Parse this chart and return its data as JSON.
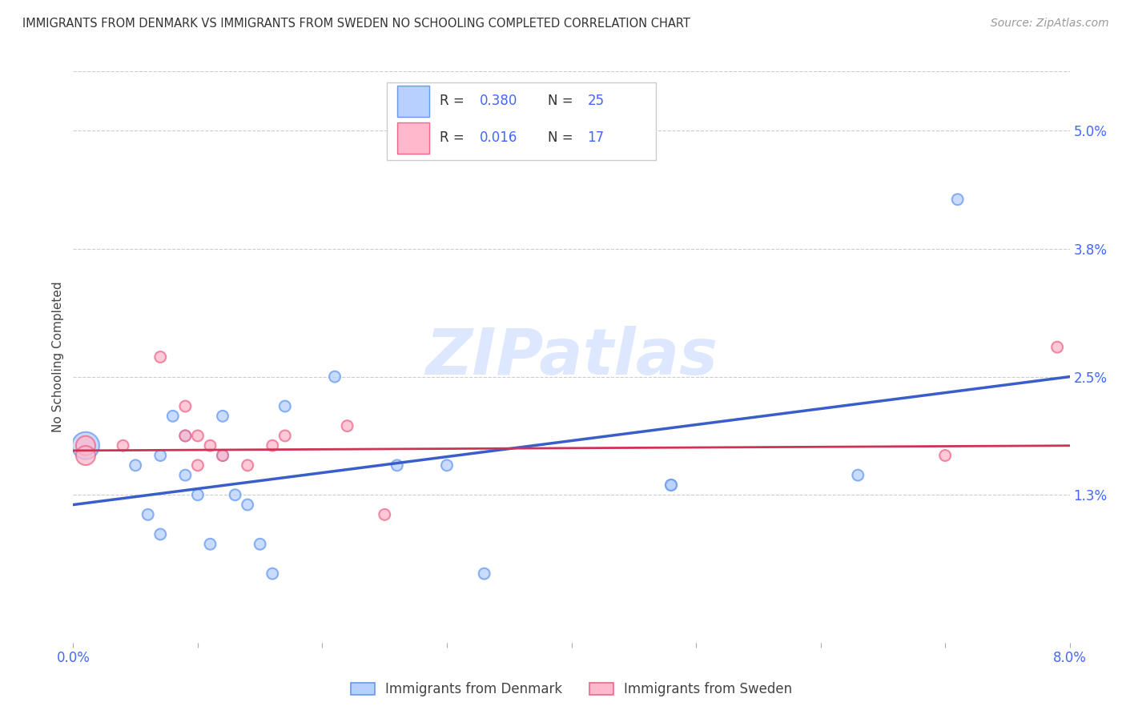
{
  "title": "IMMIGRANTS FROM DENMARK VS IMMIGRANTS FROM SWEDEN NO SCHOOLING COMPLETED CORRELATION CHART",
  "source": "Source: ZipAtlas.com",
  "ylabel": "No Schooling Completed",
  "xlim": [
    0.0,
    0.08
  ],
  "ylim": [
    -0.002,
    0.056
  ],
  "xticks": [
    0.0,
    0.01,
    0.02,
    0.03,
    0.04,
    0.05,
    0.06,
    0.07,
    0.08
  ],
  "xtick_labels": [
    "0.0%",
    "",
    "",
    "",
    "",
    "",
    "",
    "",
    "8.0%"
  ],
  "ytick_positions": [
    0.013,
    0.025,
    0.038,
    0.05
  ],
  "ytick_labels": [
    "1.3%",
    "2.5%",
    "3.8%",
    "5.0%"
  ],
  "legend_r1": "0.380",
  "legend_n1": "25",
  "legend_r2": "0.016",
  "legend_n2": "17",
  "denmark_fill": "#b8d0ff",
  "denmark_edge": "#6699ee",
  "sweden_fill": "#ffb8cc",
  "sweden_edge": "#ee6688",
  "trend_color1": "#3a5ec9",
  "trend_color2": "#cc3355",
  "watermark_text": "ZIPatlas",
  "denmark_x": [
    0.001,
    0.005,
    0.006,
    0.007,
    0.007,
    0.008,
    0.009,
    0.009,
    0.01,
    0.011,
    0.012,
    0.012,
    0.013,
    0.014,
    0.015,
    0.016,
    0.017,
    0.021,
    0.026,
    0.03,
    0.033,
    0.048,
    0.048,
    0.063,
    0.071
  ],
  "denmark_y": [
    0.018,
    0.016,
    0.011,
    0.009,
    0.017,
    0.021,
    0.015,
    0.019,
    0.013,
    0.008,
    0.017,
    0.021,
    0.013,
    0.012,
    0.008,
    0.005,
    0.022,
    0.025,
    0.016,
    0.016,
    0.005,
    0.014,
    0.014,
    0.015,
    0.043
  ],
  "denmark_sizes": [
    600,
    100,
    100,
    100,
    100,
    100,
    100,
    100,
    100,
    100,
    100,
    100,
    100,
    100,
    100,
    100,
    100,
    100,
    100,
    100,
    100,
    100,
    100,
    100,
    100
  ],
  "sweden_x": [
    0.001,
    0.001,
    0.004,
    0.007,
    0.009,
    0.009,
    0.01,
    0.01,
    0.011,
    0.012,
    0.014,
    0.016,
    0.017,
    0.022,
    0.025,
    0.07,
    0.079
  ],
  "sweden_y": [
    0.018,
    0.017,
    0.018,
    0.027,
    0.019,
    0.022,
    0.019,
    0.016,
    0.018,
    0.017,
    0.016,
    0.018,
    0.019,
    0.02,
    0.011,
    0.017,
    0.028
  ],
  "sweden_sizes": [
    300,
    300,
    100,
    100,
    100,
    100,
    100,
    100,
    100,
    100,
    100,
    100,
    100,
    100,
    100,
    100,
    100
  ],
  "trend1_x0": 0.0,
  "trend1_y0": 0.012,
  "trend1_x1": 0.08,
  "trend1_y1": 0.025,
  "trend2_x0": 0.0,
  "trend2_y0": 0.0175,
  "trend2_x1": 0.08,
  "trend2_y1": 0.018,
  "background_color": "#ffffff",
  "grid_color": "#cccccc"
}
